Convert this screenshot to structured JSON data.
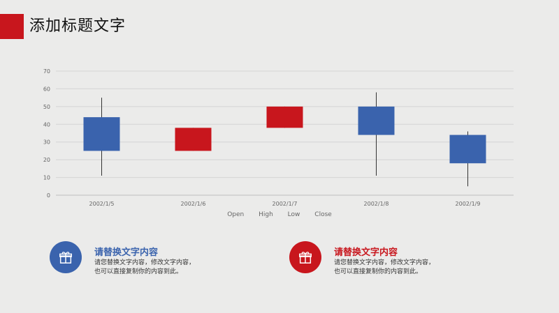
{
  "header": {
    "title": "添加标题文字",
    "accent_color": "#c8161d"
  },
  "chart_data": {
    "type": "candlestick",
    "categories": [
      "2002/1/5",
      "2002/1/6",
      "2002/1/7",
      "2002/1/8",
      "2002/1/9"
    ],
    "candles": [
      {
        "open": 25,
        "high": 55,
        "low": 11,
        "close": 44
      },
      {
        "open": 38,
        "high": 38,
        "low": 25,
        "close": 25
      },
      {
        "open": 50,
        "high": 50,
        "low": 38,
        "close": 38
      },
      {
        "open": 34,
        "high": 58,
        "low": 11,
        "close": 50
      },
      {
        "open": 18,
        "high": 36,
        "low": 5,
        "close": 34
      }
    ],
    "yticks": [
      0,
      10,
      20,
      30,
      40,
      50,
      60,
      70
    ],
    "ylim": [
      0,
      70
    ],
    "legend": [
      "Open",
      "High",
      "Low",
      "Close"
    ],
    "colors": {
      "up": "#3a63ad",
      "down": "#c8161d"
    },
    "grid": true,
    "legend_position": "bottom"
  },
  "cards": [
    {
      "title": "请替换文字内容",
      "line1": "请您替换文字内容，修改文字内容，",
      "line2": "也可以直接复制你的内容到此。",
      "color": "#3a63ad",
      "icon": "gift-icon"
    },
    {
      "title": "请替换文字内容",
      "line1": "请您替换文字内容，修改文字内容，",
      "line2": "也可以直接复制你的内容到此。",
      "color": "#c8161d",
      "icon": "gift-icon"
    }
  ]
}
